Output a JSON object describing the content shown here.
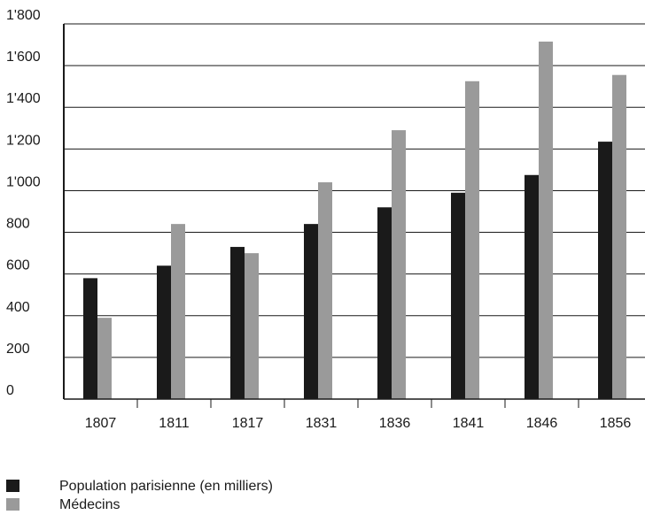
{
  "chart_data": {
    "type": "bar",
    "title": "",
    "xlabel": "",
    "ylabel": "",
    "categories": [
      "1807",
      "1811",
      "1817",
      "1831",
      "1836",
      "1841",
      "1846",
      "1856"
    ],
    "y_tick_labels": [
      "0",
      "200",
      "400",
      "600",
      "800",
      "1'000",
      "1'200",
      "1'400",
      "1'600",
      "1'800"
    ],
    "y_tick_values": [
      0,
      200,
      400,
      600,
      800,
      1000,
      1200,
      1400,
      1600,
      1800
    ],
    "ylim": [
      0,
      1800
    ],
    "grid": true,
    "legend_position": "bottom-left",
    "series": [
      {
        "name": "Population parisienne (en milliers)",
        "color": "#1a1a1a",
        "values": [
          580,
          640,
          730,
          840,
          920,
          990,
          1075,
          1235
        ]
      },
      {
        "name": "Médecins",
        "color": "#9a9a9a",
        "values": [
          390,
          840,
          700,
          1040,
          1290,
          1525,
          1715,
          1555
        ]
      }
    ]
  }
}
